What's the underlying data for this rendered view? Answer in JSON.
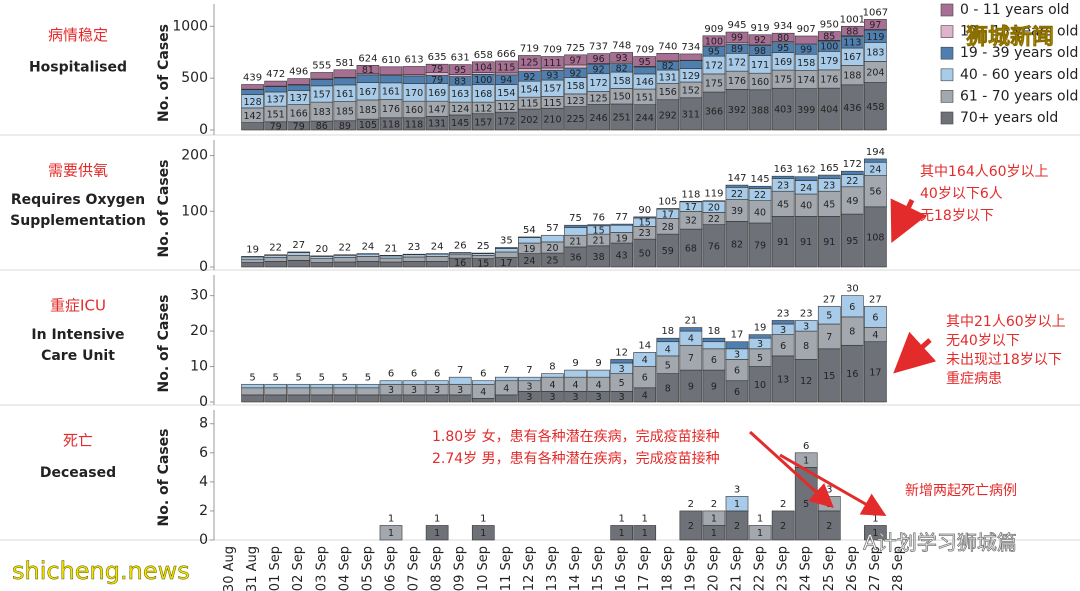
{
  "chart_data": [
    {
      "type": "bar",
      "stacked": true,
      "title": "病情稳定",
      "subtitle": "Hospitalised",
      "ylabel": "No. of Cases",
      "ylim": [
        0,
        1100
      ],
      "yticks": [
        0,
        500,
        1000
      ],
      "totals": [
        null,
        439,
        472,
        496,
        555,
        581,
        624,
        610,
        613,
        635,
        631,
        658,
        666,
        719,
        709,
        725,
        737,
        748,
        709,
        740,
        734,
        909,
        945,
        919,
        934,
        907,
        950,
        1001,
        1067,
        null
      ],
      "series": [
        {
          "name": "0 - 11 years old",
          "color": "#a86f94",
          "values": [
            null,
            45,
            48,
            57,
            62,
            73,
            81,
            73,
            77,
            79,
            95,
            104,
            115,
            125,
            111,
            97,
            96,
            93,
            95,
            72,
            61,
            100,
            99,
            92,
            80,
            77,
            85,
            88,
            97,
            null
          ]
        },
        {
          "name": "12 - 18 years old",
          "color": "#dfb3cc",
          "values": [
            null,
            5,
            5,
            5,
            5,
            5,
            11,
            11,
            14,
            30,
            21,
            17,
            19,
            31,
            23,
            30,
            6,
            14,
            6,
            7,
            4,
            1,
            17,
            10,
            12,
            0,
            6,
            9,
            6,
            null
          ]
        },
        {
          "name": "19 - 39 years old",
          "color": "#4f7fae",
          "values": [
            null,
            48,
            52,
            52,
            62,
            68,
            75,
            71,
            74,
            79,
            83,
            100,
            94,
            92,
            93,
            92,
            92,
            82,
            67,
            82,
            77,
            95,
            89,
            98,
            95,
            99,
            100,
            113,
            119,
            null
          ]
        },
        {
          "name": "40 - 60 years old",
          "color": "#a7cbe8",
          "values": [
            null,
            128,
            137,
            137,
            157,
            161,
            167,
            161,
            170,
            169,
            163,
            168,
            154,
            154,
            157,
            158,
            172,
            158,
            146,
            131,
            129,
            172,
            172,
            171,
            169,
            158,
            179,
            167,
            183,
            null
          ]
        },
        {
          "name": "61 - 70 years old",
          "color": "#a3a8ae",
          "values": [
            null,
            142,
            151,
            166,
            183,
            185,
            185,
            176,
            160,
            147,
            124,
            112,
            112,
            115,
            115,
            123,
            125,
            150,
            151,
            156,
            152,
            175,
            176,
            160,
            175,
            174,
            176,
            188,
            204,
            null
          ]
        },
        {
          "name": "70+ years old",
          "color": "#6e7177",
          "values": [
            null,
            71,
            79,
            79,
            86,
            89,
            105,
            118,
            118,
            131,
            145,
            157,
            172,
            202,
            210,
            225,
            246,
            251,
            244,
            292,
            311,
            366,
            392,
            388,
            403,
            399,
            404,
            436,
            458,
            null
          ]
        }
      ]
    },
    {
      "type": "bar",
      "stacked": true,
      "title": "需要供氧",
      "subtitle": "Requires Oxygen Supplementation",
      "ylabel": "No. of Cases",
      "ylim": [
        0,
        210
      ],
      "yticks": [
        0,
        100,
        200
      ],
      "annotations": [
        "其中164人60岁以上",
        "40岁以下6人",
        "无18岁以下"
      ],
      "totals": [
        null,
        19,
        22,
        27,
        20,
        22,
        24,
        21,
        23,
        24,
        26,
        25,
        35,
        54,
        57,
        75,
        76,
        77,
        90,
        105,
        118,
        119,
        147,
        145,
        163,
        162,
        165,
        172,
        194,
        null
      ],
      "series": [
        {
          "color": "#4f7fae",
          "values": [
            null,
            1,
            1,
            1,
            1,
            1,
            1,
            1,
            1,
            1,
            1,
            1,
            2,
            1,
            0,
            4,
            2,
            2,
            2,
            1,
            1,
            1,
            4,
            4,
            4,
            7,
            6,
            6,
            6,
            null
          ]
        },
        {
          "color": "#a7cbe8",
          "values": [
            null,
            4,
            4,
            5,
            4,
            4,
            4,
            4,
            4,
            4,
            3,
            3,
            6,
            10,
            12,
            14,
            15,
            13,
            15,
            17,
            17,
            20,
            22,
            22,
            23,
            24,
            23,
            22,
            24,
            null
          ]
        },
        {
          "color": "#a3a8ae",
          "values": [
            null,
            6,
            7,
            9,
            7,
            8,
            9,
            7,
            8,
            9,
            6,
            6,
            10,
            19,
            20,
            21,
            21,
            19,
            23,
            28,
            32,
            22,
            39,
            40,
            45,
            40,
            45,
            49,
            56,
            null
          ]
        },
        {
          "color": "#6e7177",
          "values": [
            null,
            8,
            10,
            12,
            8,
            9,
            10,
            9,
            10,
            10,
            16,
            15,
            17,
            24,
            25,
            36,
            38,
            43,
            50,
            59,
            68,
            76,
            82,
            79,
            91,
            91,
            91,
            95,
            108,
            null
          ]
        }
      ]
    },
    {
      "type": "bar",
      "stacked": true,
      "title": "重症ICU",
      "subtitle": "In Intensive Care Unit",
      "ylabel": "No. of Cases",
      "ylim": [
        0,
        33
      ],
      "yticks": [
        0,
        10,
        20,
        30
      ],
      "annotations": [
        "其中21人60岁以上",
        "无40岁以下",
        "未出现过18岁以下",
        "重症病患"
      ],
      "totals": [
        null,
        5,
        5,
        5,
        5,
        5,
        5,
        6,
        6,
        6,
        7,
        6,
        7,
        7,
        8,
        9,
        9,
        12,
        14,
        18,
        21,
        18,
        17,
        19,
        23,
        23,
        27,
        30,
        27,
        null
      ],
      "series": [
        {
          "color": "#4f7fae",
          "values": [
            null,
            0,
            0,
            0,
            0,
            0,
            0,
            0,
            0,
            0,
            0,
            0,
            0,
            0,
            0,
            0,
            0,
            1,
            0,
            1,
            1,
            1,
            2,
            1,
            1,
            0,
            0,
            0,
            0,
            null
          ]
        },
        {
          "color": "#a7cbe8",
          "values": [
            null,
            1,
            1,
            1,
            1,
            1,
            1,
            1,
            1,
            1,
            2,
            1,
            1,
            1,
            1,
            2,
            2,
            3,
            4,
            4,
            4,
            2,
            3,
            3,
            3,
            3,
            5,
            6,
            6,
            null
          ]
        },
        {
          "color": "#a3a8ae",
          "values": [
            null,
            2,
            2,
            2,
            2,
            2,
            2,
            3,
            3,
            3,
            3,
            4,
            4,
            3,
            4,
            4,
            4,
            5,
            6,
            5,
            7,
            6,
            6,
            5,
            6,
            8,
            7,
            8,
            4,
            null
          ]
        },
        {
          "color": "#6e7177",
          "values": [
            null,
            2,
            2,
            2,
            2,
            2,
            2,
            2,
            2,
            2,
            2,
            1,
            2,
            3,
            3,
            3,
            3,
            3,
            4,
            8,
            9,
            9,
            6,
            10,
            13,
            12,
            15,
            16,
            17,
            null
          ]
        }
      ]
    },
    {
      "type": "bar",
      "stacked": true,
      "title": "死亡",
      "subtitle": "Deceased",
      "ylabel": "No. of Cases",
      "ylim": [
        0,
        8.6
      ],
      "yticks": [
        0,
        2,
        4,
        6,
        8
      ],
      "annotations": [
        "1.80岁 女，患有各种潜在疾病，完成疫苗接种",
        "2.74岁 男，患有各种潜在疾病，完成疫苗接种",
        "新增两起死亡病例"
      ],
      "categories": [
        "30 Aug",
        "31 Aug",
        "01 Sep",
        "02 Sep",
        "03 Sep",
        "04 Sep",
        "05 Sep",
        "06 Sep",
        "07 Sep",
        "08 Sep",
        "09 Sep",
        "10 Sep",
        "11 Sep",
        "12 Sep",
        "13 Sep",
        "14 Sep",
        "15 Sep",
        "16 Sep",
        "17 Sep",
        "18 Sep",
        "19 Sep",
        "20 Sep",
        "21 Sep",
        "22 Sep",
        "23 Sep",
        "24 Sep",
        "25 Sep",
        "26 Sep",
        "27 Sep",
        "28 Sep"
      ],
      "totals": [
        null,
        null,
        null,
        null,
        null,
        null,
        null,
        1,
        null,
        1,
        null,
        1,
        null,
        null,
        null,
        null,
        null,
        1,
        1,
        null,
        2,
        2,
        3,
        1,
        2,
        6,
        3,
        null,
        1,
        null
      ],
      "series": [
        {
          "color": "#a7cbe8",
          "values": [
            null,
            null,
            null,
            null,
            null,
            null,
            null,
            null,
            null,
            null,
            null,
            null,
            null,
            null,
            null,
            null,
            null,
            null,
            null,
            null,
            null,
            null,
            1,
            null,
            null,
            null,
            null,
            null,
            null,
            null
          ]
        },
        {
          "color": "#a3a8ae",
          "values": [
            null,
            null,
            null,
            null,
            null,
            null,
            null,
            1,
            null,
            null,
            null,
            null,
            null,
            null,
            null,
            null,
            null,
            null,
            null,
            null,
            null,
            1,
            null,
            1,
            null,
            1,
            1,
            null,
            null,
            null
          ]
        },
        {
          "color": "#6e7177",
          "values": [
            null,
            null,
            null,
            null,
            null,
            null,
            null,
            null,
            null,
            1,
            null,
            1,
            null,
            null,
            null,
            null,
            null,
            1,
            1,
            null,
            2,
            1,
            2,
            null,
            2,
            5,
            2,
            null,
            1,
            null
          ]
        }
      ]
    }
  ],
  "watermarks": [
    "狮城新闻",
    "shicheng.news",
    "A计划学习狮城篇"
  ]
}
